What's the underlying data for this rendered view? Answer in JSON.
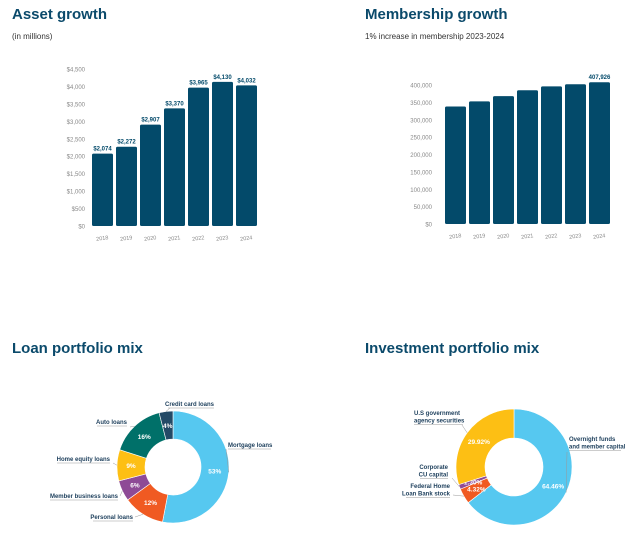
{
  "colors": {
    "bar": "#034a6a",
    "title": "#0b4a6b"
  },
  "chart_data": [
    {
      "type": "bar",
      "title": "Asset growth",
      "subtitle": "(in millions)",
      "categories": [
        "2018",
        "2019",
        "2020",
        "2021",
        "2022",
        "2023",
        "2024"
      ],
      "values": [
        2074,
        2272,
        2907,
        3370,
        3965,
        4130,
        4032
      ],
      "data_labels": [
        "$2,074",
        "$2,272",
        "$2,907",
        "$3,370",
        "$3,965",
        "$4,130",
        "$4,032"
      ],
      "yticks": [
        "$0",
        "$500",
        "$1,000",
        "$1,500",
        "$2,000",
        "$2,500",
        "$3,000",
        "$3,500",
        "$4,000",
        "$4,500"
      ],
      "ylim": [
        0,
        4500
      ],
      "grid": false
    },
    {
      "type": "bar",
      "title": "Membership growth",
      "subtitle": "1% increase in membership 2023-2024",
      "categories": [
        "2018",
        "2019",
        "2020",
        "2021",
        "2022",
        "2023",
        "2024"
      ],
      "values": [
        338000,
        353000,
        368000,
        385000,
        396000,
        402000,
        407926
      ],
      "data_labels": [
        "",
        "",
        "",
        "",
        "",
        "",
        "407,926"
      ],
      "yticks": [
        "$0",
        "50,000",
        "100,000",
        "150,000",
        "200,000",
        "250,000",
        "300,000",
        "350,000",
        "400,000"
      ],
      "ylim": [
        0,
        400000
      ],
      "grid": false
    },
    {
      "type": "pie",
      "title": "Loan portfolio mix",
      "donut": true,
      "slices": [
        {
          "label": "Mortgage loans",
          "value": 53,
          "text": "53%",
          "color": "#56c8f0"
        },
        {
          "label": "Personal loans",
          "value": 12,
          "text": "12%",
          "color": "#f05a22"
        },
        {
          "label": "Member business loans",
          "value": 6,
          "text": "6%",
          "color": "#8e4a96"
        },
        {
          "label": "Home equity loans",
          "value": 9,
          "text": "9%",
          "color": "#fdbf14"
        },
        {
          "label": "Auto loans",
          "value": 16,
          "text": "16%",
          "color": "#007069"
        },
        {
          "label": "Credit card loans",
          "value": 4,
          "text": "4%",
          "color": "#234a66"
        }
      ]
    },
    {
      "type": "pie",
      "title": "Investment portfolio mix",
      "donut": true,
      "slices": [
        {
          "label": "Overnight funds and member capital",
          "value": 64.46,
          "text": "64.46%",
          "color": "#56c8f0"
        },
        {
          "label": "Federal Home Loan Bank stock",
          "value": 4.32,
          "text": "4.32%",
          "color": "#f05a22"
        },
        {
          "label": "Corporate CU capital",
          "value": 1.3,
          "text": "1.30%",
          "color": "#8e4a96"
        },
        {
          "label": "U.S government agency securities",
          "value": 29.92,
          "text": "29.92%",
          "color": "#fdbf14"
        }
      ]
    }
  ]
}
